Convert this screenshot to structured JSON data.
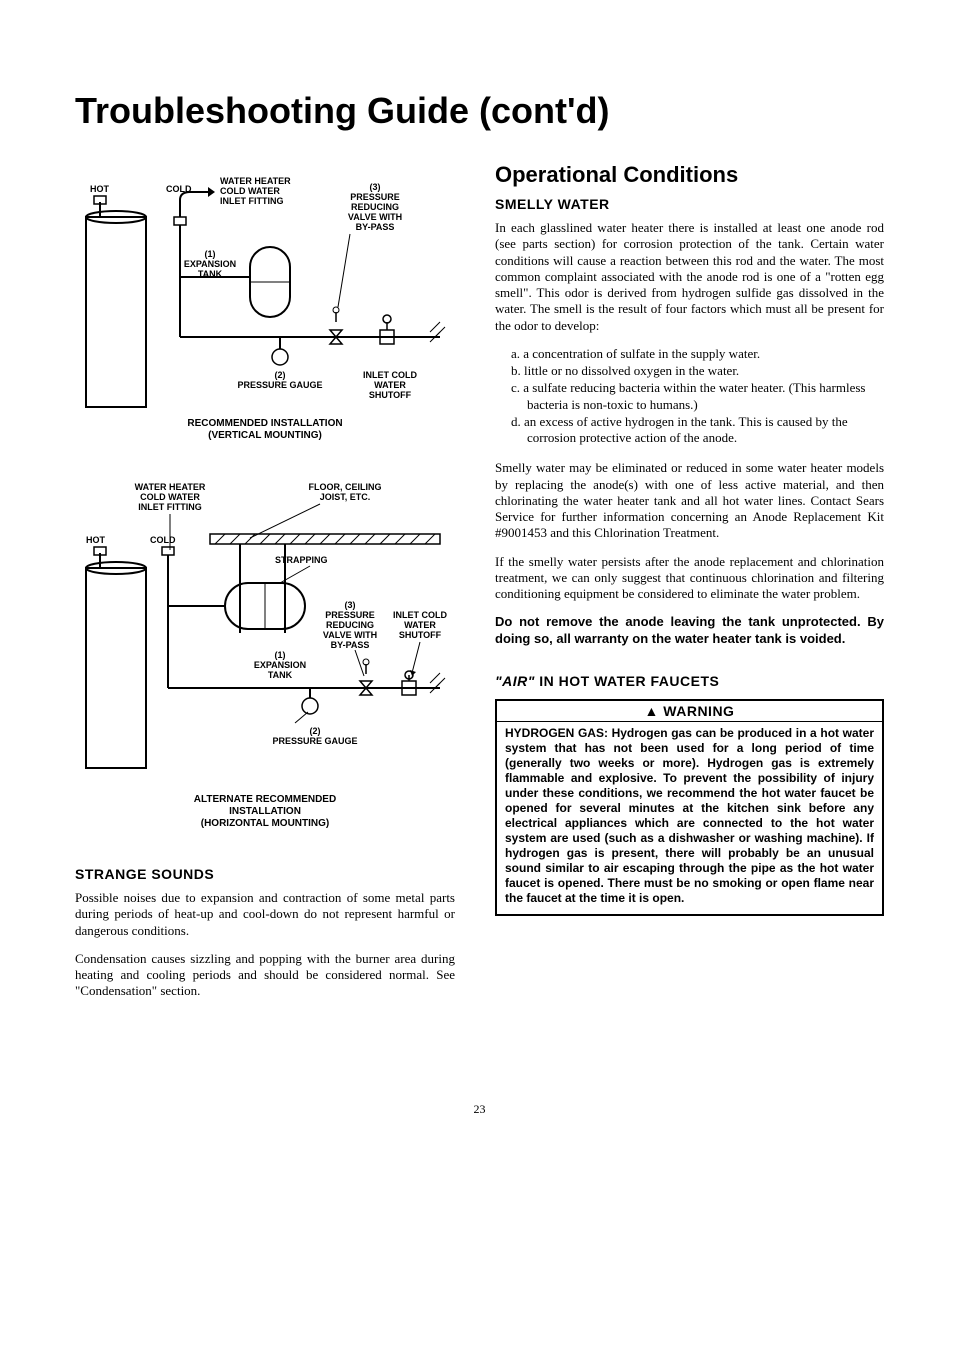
{
  "title": "Troubleshooting Guide (cont'd)",
  "page_number": "23",
  "left": {
    "diagram1": {
      "labels": {
        "hot": "HOT",
        "cold": "COLD",
        "wh_inlet": "WATER HEATER\nCOLD WATER\nINLET FITTING",
        "exp_tank": "(1)\nEXPANSION\nTANK",
        "prv": "(3)\nPRESSURE\nREDUCING\nVALVE WITH\nBY-PASS",
        "gauge": "(2)\nPRESSURE GAUGE",
        "inlet_cold": "INLET COLD\nWATER\nSHUTOFF"
      },
      "caption": "RECOMMENDED INSTALLATION\n(VERTICAL MOUNTING)"
    },
    "diagram2": {
      "labels": {
        "wh_inlet": "WATER HEATER\nCOLD WATER\nINLET FITTING",
        "floor": "FLOOR, CEILING\nJOIST, ETC.",
        "hot": "HOT",
        "cold": "COLD",
        "strapping": "STRAPPING",
        "exp_tank": "(1)\nEXPANSION\nTANK",
        "prv": "(3)\nPRESSURE\nREDUCING\nVALVE WITH\nBY-PASS",
        "inlet_cold": "INLET COLD\nWATER\nSHUTOFF",
        "gauge": "(2)\nPRESSURE GAUGE"
      },
      "caption": "ALTERNATE RECOMMENDED\nINSTALLATION\n(HORIZONTAL MOUNTING)"
    },
    "strange_sounds": {
      "heading": "STRANGE SOUNDS",
      "p1": "Possible noises due to expansion and contraction of some metal parts during periods of heat-up and cool-down do not represent harmful or dangerous conditions.",
      "p2": "Condensation causes sizzling and popping with the burner area during heating and cooling periods and should be considered normal. See \"Condensation\" section."
    }
  },
  "right": {
    "op_cond": "Operational Conditions",
    "smelly": {
      "heading": "SMELLY WATER",
      "p1": "In each glasslined water heater there is installed at least one anode rod (see parts section) for corrosion protection of the tank. Certain water conditions will cause a reaction between this rod and the water. The most common complaint associated with the anode rod is one of a \"rotten egg smell\". This odor is derived from hydrogen sulfide gas dissolved in the water. The smell is the result of four factors which must all be present for the odor to develop:",
      "list": {
        "a": "a.  a concentration of sulfate in the supply water.",
        "b": "b.  little or no dissolved oxygen in the water.",
        "c": "c.  a sulfate reducing bacteria within the water heater. (This harmless bacteria is non-toxic to humans.)",
        "d": "d.  an excess of active hydrogen in the tank. This is caused by the corrosion protective action of the anode."
      },
      "p2": "Smelly water may be eliminated or reduced in some water heater models by replacing the anode(s) with one of less active material, and then chlorinating the water heater tank and all hot water lines. Contact Sears Service for further information concerning an Anode Replacement Kit #9001453 and this Chlorination Treatment.",
      "p3": "If the smelly water persists after the anode replacement and chlorination treatment, we can only suggest that continuous chlorination and filtering conditioning equipment be considered to eliminate the water problem.",
      "p4": "Do not remove the anode leaving the tank unprotected. By doing so, all warranty on the water heater tank is voided."
    },
    "air": {
      "heading_prefix": "\"AIR\"",
      "heading_rest": " IN HOT WATER FAUCETS",
      "warn_head": "▲ WARNING",
      "warn_body": "HYDROGEN GAS: Hydrogen gas can be produced in a hot water system that has not been used for a long period of time (generally two weeks or more). Hydrogen gas is extremely flammable and explosive. To prevent the possibility of injury under these conditions, we recommend the hot water faucet be opened for several minutes at the kitchen sink before any electrical appliances which are connected to the hot water system are used (such as a dishwasher or washing machine). If hydrogen gas is present, there will probably be an unusual sound similar to air escaping through the pipe as the hot water faucet is opened. There must be no smoking or open flame near the faucet at the time it is open."
    }
  },
  "style": {
    "page_bg": "#ffffff",
    "text_color": "#000000",
    "title_fontsize": 36,
    "section_fontsize": 22,
    "sub_fontsize": 14,
    "body_fontsize": 13,
    "diagram_label_fontsize": 9,
    "warning_border": "#000000",
    "stroke": "#000000",
    "stroke_width": 2
  }
}
